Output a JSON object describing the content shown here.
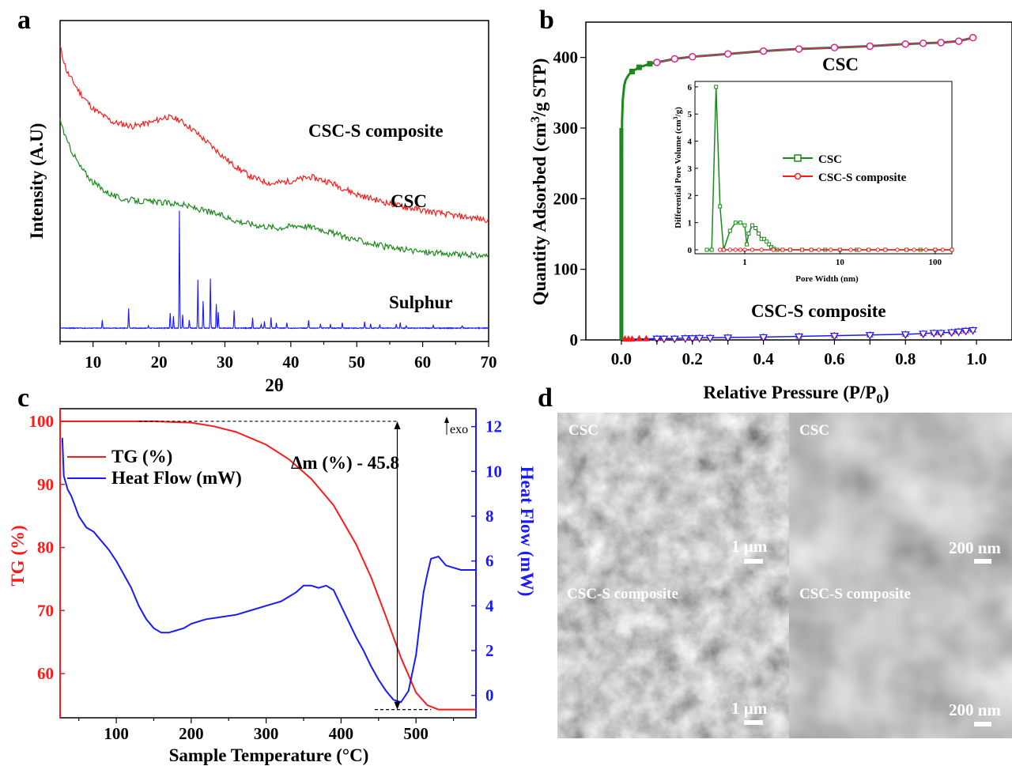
{
  "panel_labels": [
    "a",
    "b",
    "c",
    "d"
  ],
  "colors": {
    "red": "#ff1a1a",
    "green": "#1a8a1a",
    "blue": "#1a1aff",
    "pink": "#e0208a",
    "black": "#000000"
  },
  "chart_data": [
    {
      "id": "a",
      "type": "line",
      "title": "",
      "xlabel": "2θ",
      "ylabel": "Intensity (A.U)",
      "xlim": [
        5,
        70
      ],
      "xticks": [
        "10",
        "20",
        "30",
        "40",
        "50",
        "60",
        "70"
      ],
      "series": [
        {
          "name": "CSC-S composite",
          "color": "#ff1a1a",
          "x": [
            5,
            6,
            8,
            10,
            13,
            16,
            19,
            21,
            23,
            25,
            28,
            31,
            34,
            37,
            40,
            43,
            46,
            50,
            55,
            60,
            65,
            70
          ],
          "y": [
            22.0,
            20.2,
            18.6,
            17.4,
            16.4,
            16.1,
            16.4,
            16.8,
            16.6,
            15.9,
            14.6,
            13.3,
            12.3,
            11.8,
            12.0,
            12.3,
            11.9,
            11.0,
            10.3,
            9.8,
            9.4,
            9.1
          ]
        },
        {
          "name": "CSC",
          "color": "#1a8a1a",
          "x": [
            5,
            6,
            8,
            10,
            12,
            14,
            17,
            20,
            23,
            26,
            29,
            32,
            35,
            38,
            41,
            44,
            47,
            50,
            55,
            60,
            65,
            70
          ],
          "y": [
            16.6,
            15.0,
            13.1,
            11.9,
            11.2,
            10.7,
            10.5,
            10.4,
            10.3,
            9.9,
            9.5,
            9.0,
            8.7,
            8.5,
            8.7,
            8.5,
            8.0,
            7.6,
            7.0,
            6.7,
            6.5,
            6.4
          ]
        },
        {
          "name": "Sulphur",
          "color": "#1a1aff",
          "baseline": 1.0,
          "peaks": [
            [
              11.4,
              0.6
            ],
            [
              15.4,
              1.5
            ],
            [
              18.4,
              0.2
            ],
            [
              21.7,
              1.1
            ],
            [
              22.2,
              0.9
            ],
            [
              23.1,
              8.8
            ],
            [
              23.6,
              1.0
            ],
            [
              24.6,
              0.6
            ],
            [
              25.9,
              3.6
            ],
            [
              26.7,
              2.0
            ],
            [
              27.8,
              3.7
            ],
            [
              28.7,
              1.8
            ],
            [
              29.0,
              1.2
            ],
            [
              31.4,
              1.3
            ],
            [
              34.2,
              0.8
            ],
            [
              35.5,
              0.3
            ],
            [
              36.0,
              0.5
            ],
            [
              37.0,
              0.8
            ],
            [
              37.8,
              0.4
            ],
            [
              39.4,
              0.4
            ],
            [
              42.7,
              0.6
            ],
            [
              44.5,
              0.3
            ],
            [
              46.0,
              0.3
            ],
            [
              47.8,
              0.4
            ],
            [
              51.2,
              0.5
            ],
            [
              52.1,
              0.3
            ],
            [
              53.5,
              0.3
            ],
            [
              56.0,
              0.3
            ],
            [
              56.6,
              0.4
            ],
            [
              57.5,
              0.2
            ],
            [
              61.6,
              0.2
            ],
            [
              66.0,
              0.2
            ]
          ]
        }
      ],
      "annotations": [
        "CSC-S composite",
        "CSC",
        "Sulphur"
      ]
    },
    {
      "id": "b",
      "type": "scatter",
      "title": "",
      "xlabel": "Relative Pressure (P/P",
      "xlabel_sub": "0",
      "xlabel_close": ")",
      "ylabel": "Quantity Adsorbed (cm",
      "ylabel_sup": "3",
      "ylabel_end": "/g STP)",
      "xlim": [
        -0.1,
        1.1
      ],
      "ylim": [
        0,
        450
      ],
      "xticks": [
        "0.0",
        "0.2",
        "0.4",
        "0.6",
        "0.8",
        "1.0"
      ],
      "yticks": [
        "0",
        "100",
        "200",
        "300",
        "400"
      ],
      "series": [
        {
          "name": "CSC",
          "color": "#1a8a1a",
          "x": [
            0.0,
            0.0005,
            0.001,
            0.002,
            0.004,
            0.008,
            0.012,
            0.02,
            0.03,
            0.05,
            0.08,
            0.1,
            0.15,
            0.2,
            0.3,
            0.4,
            0.5,
            0.6,
            0.7,
            0.8,
            0.85,
            0.9,
            0.95,
            0.99
          ],
          "y": [
            0,
            150,
            250,
            310,
            340,
            360,
            368,
            375,
            380,
            386,
            391,
            393,
            398,
            401,
            405,
            409,
            412,
            414,
            416,
            419,
            420,
            421,
            423,
            428
          ]
        },
        {
          "name": "CSC-S composite",
          "color": "#1a1aff",
          "x": [
            0.01,
            0.02,
            0.03,
            0.05,
            0.07,
            0.1,
            0.12,
            0.15,
            0.18,
            0.2,
            0.22,
            0.25,
            0.3,
            0.4,
            0.5,
            0.6,
            0.7,
            0.8,
            0.85,
            0.88,
            0.9,
            0.93,
            0.95,
            0.97,
            0.99
          ],
          "y": [
            1,
            1,
            1,
            1.5,
            1.5,
            2,
            2,
            2,
            2.5,
            2.5,
            3,
            3,
            3.5,
            4,
            5,
            6,
            7,
            8,
            9,
            10,
            10,
            11,
            12,
            13,
            14
          ]
        }
      ],
      "annotations": [
        "CSC",
        "CSC-S composite"
      ],
      "inset": {
        "type": "line",
        "xlabel": "Pore Width (nm)",
        "ylabel": "Differential Pore Volume (cm",
        "ylabel_sup": "3",
        "ylabel_end": "/g)",
        "xscale": "log",
        "xlim": [
          0.3,
          150
        ],
        "ylim": [
          0,
          6.2
        ],
        "xticks": [
          "1",
          "10",
          "100"
        ],
        "yticks": [
          "0",
          "1",
          "2",
          "3",
          "4",
          "5",
          "6"
        ],
        "series": [
          {
            "name": "CSC",
            "color": "#1a8a1a",
            "x": [
              0.4,
              0.45,
              0.5,
              0.55,
              0.6,
              0.7,
              0.8,
              0.9,
              1.0,
              1.05,
              1.1,
              1.2,
              1.3,
              1.4,
              1.5,
              1.6,
              1.7,
              1.8,
              1.9,
              2.0,
              2.2,
              2.5,
              3,
              4,
              5,
              7,
              10,
              15,
              20,
              30,
              50,
              70,
              100,
              150
            ],
            "y": [
              0,
              0,
              6.0,
              1.6,
              0,
              0.7,
              1.0,
              1.0,
              0.9,
              0.2,
              0.6,
              0.9,
              0.8,
              0.6,
              0.4,
              0.4,
              0.3,
              0.2,
              0.1,
              0.05,
              0,
              0,
              0,
              0,
              0,
              0,
              0,
              0,
              0,
              0,
              0,
              0,
              0,
              0
            ]
          },
          {
            "name": "CSC-S composite",
            "color": "#ff1a1a",
            "x": [
              0.55,
              0.6,
              0.7,
              0.8,
              0.9,
              1.0,
              1.2,
              1.5,
              2,
              2.5,
              3,
              4,
              5,
              6,
              8,
              10,
              13,
              16,
              20,
              25,
              30,
              40,
              50,
              60,
              80,
              100,
              120,
              150
            ],
            "y": [
              0,
              0,
              0,
              0,
              0,
              0,
              0,
              0,
              0,
              0,
              0,
              0,
              0,
              0,
              0,
              0,
              0,
              0,
              0,
              0,
              0,
              0,
              0,
              0,
              0,
              0,
              0,
              0
            ]
          }
        ]
      }
    },
    {
      "id": "c",
      "type": "line",
      "title": "",
      "xlabel": "Sample Temperature (°C)",
      "ylabel_left": "TG (%)",
      "ylabel_right": "Heat Flow (mW)",
      "xlim": [
        25,
        580
      ],
      "ylim_left": [
        53,
        102
      ],
      "ylim_right": [
        -1.0,
        12.8
      ],
      "xticks": [
        "100",
        "200",
        "300",
        "400",
        "500"
      ],
      "yticks_left": [
        "60",
        "70",
        "80",
        "90",
        "100"
      ],
      "yticks_right": [
        "0",
        "2",
        "4",
        "6",
        "8",
        "10",
        "12"
      ],
      "legend_placement": "top-left",
      "exo_label": "exo",
      "annotation": "Δm (%) - 45.8",
      "series": [
        {
          "name": "TG (%)",
          "color": "#ff1a1a",
          "axis": "left",
          "x": [
            25,
            100,
            150,
            200,
            230,
            260,
            300,
            330,
            360,
            390,
            420,
            440,
            460,
            480,
            500,
            515,
            530,
            580
          ],
          "y": [
            100,
            100,
            100,
            99.8,
            99.2,
            98.3,
            96.3,
            94.0,
            90.9,
            86.7,
            80.5,
            75.3,
            69.0,
            62.5,
            57.0,
            55.0,
            54.3,
            54.3
          ]
        },
        {
          "name": "Heat Flow (mW)",
          "color": "#1a1aff",
          "axis": "right",
          "x": [
            28,
            30,
            35,
            40,
            50,
            60,
            70,
            80,
            90,
            100,
            110,
            120,
            130,
            140,
            150,
            160,
            170,
            180,
            190,
            200,
            220,
            240,
            260,
            280,
            300,
            320,
            330,
            340,
            350,
            360,
            370,
            380,
            390,
            400,
            410,
            420,
            430,
            440,
            450,
            460,
            470,
            480,
            490,
            500,
            505,
            510,
            515,
            520,
            530,
            540,
            560,
            580
          ],
          "y": [
            11.5,
            9.8,
            9.2,
            8.9,
            8.0,
            7.5,
            7.3,
            6.9,
            6.5,
            6.0,
            5.4,
            4.8,
            4.0,
            3.4,
            3.0,
            2.8,
            2.8,
            2.9,
            3.0,
            3.2,
            3.4,
            3.5,
            3.6,
            3.8,
            4.0,
            4.2,
            4.4,
            4.6,
            4.9,
            4.9,
            4.8,
            4.9,
            4.7,
            4.0,
            3.3,
            2.6,
            2.0,
            1.3,
            0.7,
            0.2,
            -0.2,
            -0.3,
            0.2,
            1.8,
            3.2,
            4.6,
            5.4,
            6.1,
            6.2,
            5.8,
            5.6,
            5.6
          ]
        }
      ]
    }
  ],
  "sem": {
    "labels": [
      "CSC",
      "CSC",
      "CSC-S composite",
      "CSC-S composite"
    ],
    "scale_bars": [
      "1 µm",
      "200 nm",
      "1 µm",
      "200 nm"
    ]
  }
}
